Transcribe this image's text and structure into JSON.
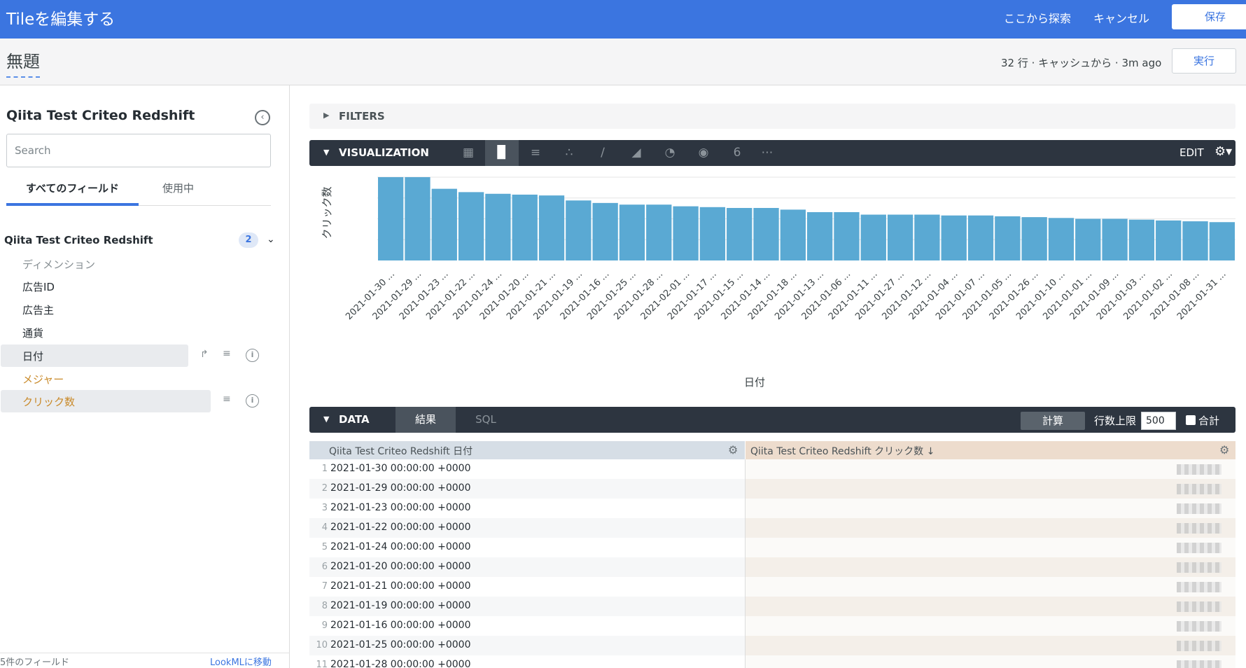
{
  "topbar": {
    "title": "Tileを編集する",
    "explore_link": "ここから探索",
    "cancel_link": "キャンセル",
    "save_label": "保存"
  },
  "subheader": {
    "title": "無題",
    "meta": "32 行 · キャッシュから · 3m ago",
    "run_label": "実行"
  },
  "sidebar": {
    "explore_name": "Qiita Test Criteo Redshift",
    "search_placeholder": "Search",
    "tab_all": "すべてのフィールド",
    "tab_in_use": "使用中",
    "view_name": "Qiita Test Criteo Redshift",
    "view_count": "2",
    "dimensions_label": "ディメンション",
    "dimensions": [
      "広告ID",
      "広告主",
      "通貨",
      "日付"
    ],
    "measures_label": "メジャー",
    "measures": [
      "クリック数"
    ],
    "footer_left": "5件のフィールド",
    "footer_right": "LookMLに移動"
  },
  "filters": {
    "label": "FILTERS"
  },
  "visualization": {
    "label": "VISUALIZATION",
    "edit_label": "EDIT",
    "single_value_glyph": "6",
    "types": [
      "table",
      "column",
      "bar",
      "scatter",
      "line",
      "area",
      "pie",
      "map",
      "single-value",
      "more"
    ],
    "active_type": "column"
  },
  "chart_data": {
    "type": "bar",
    "xlabel": "日付",
    "ylabel": "クリック数",
    "categories": [
      "2021-01-30 ...",
      "2021-01-29 ...",
      "2021-01-23 ...",
      "2021-01-22 ...",
      "2021-01-24 ...",
      "2021-01-20 ...",
      "2021-01-21 ...",
      "2021-01-19 ...",
      "2021-01-16 ...",
      "2021-01-25 ...",
      "2021-01-28 ...",
      "2021-02-01 ...",
      "2021-01-17 ...",
      "2021-01-15 ...",
      "2021-01-14 ...",
      "2021-01-18 ...",
      "2021-01-13 ...",
      "2021-01-06 ...",
      "2021-01-11 ...",
      "2021-01-27 ...",
      "2021-01-12 ...",
      "2021-01-04 ...",
      "2021-01-07 ...",
      "2021-01-05 ...",
      "2021-01-26 ...",
      "2021-01-10 ...",
      "2021-01-01 ...",
      "2021-01-09 ...",
      "2021-01-03 ...",
      "2021-01-02 ...",
      "2021-01-08 ...",
      "2021-01-31 ..."
    ],
    "values": [
      1.0,
      1.0,
      0.86,
      0.82,
      0.8,
      0.79,
      0.78,
      0.72,
      0.69,
      0.67,
      0.67,
      0.65,
      0.64,
      0.63,
      0.63,
      0.61,
      0.58,
      0.58,
      0.55,
      0.55,
      0.55,
      0.54,
      0.54,
      0.53,
      0.52,
      0.51,
      0.5,
      0.5,
      0.49,
      0.48,
      0.47,
      0.46
    ],
    "values_note": "",
    "ylim": [
      0,
      1.05
    ],
    "grid": true,
    "bar_color": "#5aa9d3"
  },
  "data": {
    "label": "DATA",
    "tab_results": "結果",
    "tab_sql": "SQL",
    "calc_label": "計算",
    "row_limit_label": "行数上限",
    "row_limit_value": "500",
    "total_label": "合計",
    "col_dim_header": "Qiita Test Criteo Redshift 日付",
    "col_meas_header": "Qiita Test Criteo Redshift クリック数 ↓",
    "rows": [
      {
        "n": "1",
        "date": "2021-01-30 00:00:00 +0000"
      },
      {
        "n": "2",
        "date": "2021-01-29 00:00:00 +0000"
      },
      {
        "n": "3",
        "date": "2021-01-23 00:00:00 +0000"
      },
      {
        "n": "4",
        "date": "2021-01-22 00:00:00 +0000"
      },
      {
        "n": "5",
        "date": "2021-01-24 00:00:00 +0000"
      },
      {
        "n": "6",
        "date": "2021-01-20 00:00:00 +0000"
      },
      {
        "n": "7",
        "date": "2021-01-21 00:00:00 +0000"
      },
      {
        "n": "8",
        "date": "2021-01-19 00:00:00 +0000"
      },
      {
        "n": "9",
        "date": "2021-01-16 00:00:00 +0000"
      },
      {
        "n": "10",
        "date": "2021-01-25 00:00:00 +0000"
      },
      {
        "n": "11",
        "date": "2021-01-28 00:00:00 +0000"
      }
    ]
  },
  "colors": {
    "brand_blue": "#3b75e0",
    "dark_bar": "#2d3540",
    "measure_orange": "#c98a2a"
  }
}
